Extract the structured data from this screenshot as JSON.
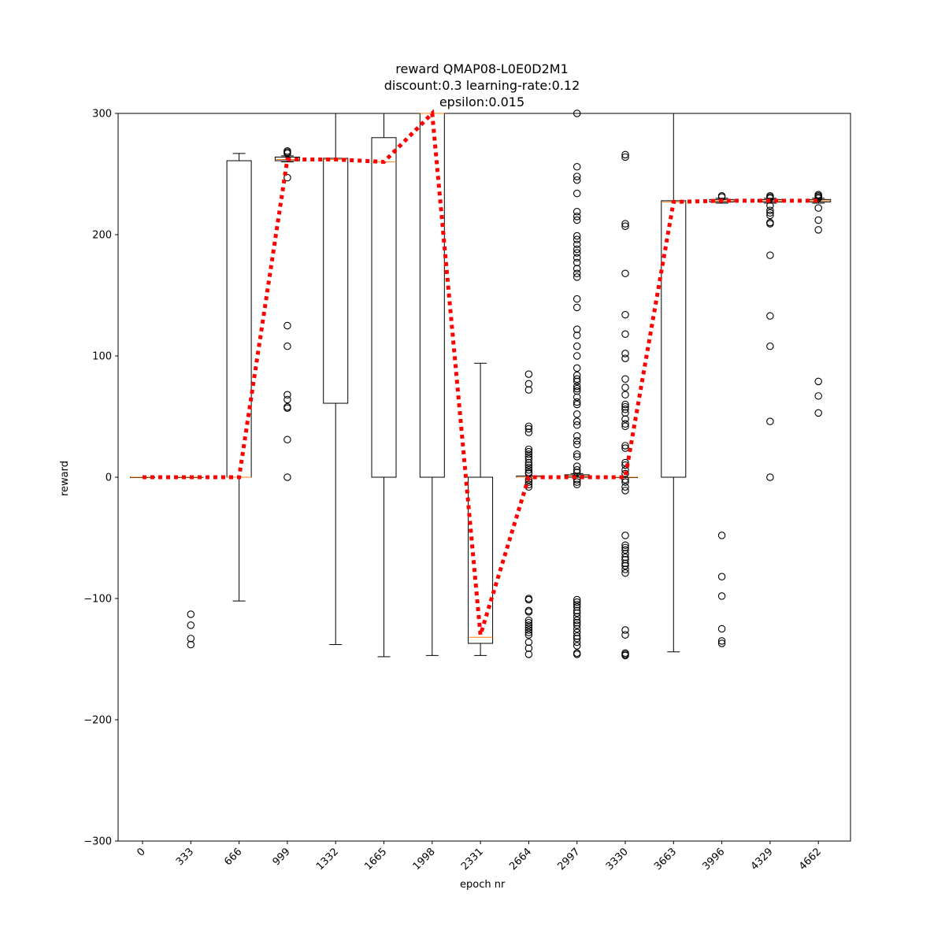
{
  "chart_data": {
    "type": "box",
    "title_lines": [
      "reward QMAP08-L0E0D2M1",
      "discount:0.3 learning-rate:0.12",
      "epsilon:0.015"
    ],
    "xlabel": "epoch nr",
    "ylabel": "reward",
    "ylim": [
      -300,
      300
    ],
    "yticks": [
      -300,
      -200,
      -100,
      0,
      100,
      200,
      300
    ],
    "categories": [
      "0",
      "333",
      "666",
      "999",
      "1332",
      "1665",
      "1998",
      "2331",
      "2664",
      "2997",
      "3330",
      "3663",
      "3996",
      "4329",
      "4662"
    ],
    "boxes": [
      {
        "wlo": 0,
        "q1": 0,
        "med": 0,
        "q3": 0,
        "whi": 0,
        "fliers": []
      },
      {
        "wlo": 0,
        "q1": 0,
        "med": 0,
        "q3": 0,
        "whi": 0,
        "fliers": [
          -113,
          -122,
          -133,
          -138
        ]
      },
      {
        "wlo": -102,
        "q1": 0,
        "med": 0,
        "q3": 261,
        "whi": 267,
        "fliers": []
      },
      {
        "wlo": 260,
        "q1": 261,
        "med": 262,
        "q3": 264,
        "whi": 265,
        "fliers": [
          269,
          268,
          267,
          247,
          125,
          108,
          68,
          64,
          58,
          57,
          31,
          0
        ]
      },
      {
        "wlo": -138,
        "q1": 61,
        "med": 262,
        "q3": 263,
        "whi": 300,
        "fliers": []
      },
      {
        "wlo": -148,
        "q1": 0,
        "med": 260,
        "q3": 280,
        "whi": 300,
        "fliers": []
      },
      {
        "wlo": -147,
        "q1": 0,
        "med": 300,
        "q3": 300,
        "whi": 300,
        "fliers": []
      },
      {
        "wlo": -147,
        "q1": -137,
        "med": -132,
        "q3": 0,
        "whi": 94,
        "fliers": []
      },
      {
        "wlo": 0,
        "q1": 0,
        "med": 0,
        "q3": 1,
        "whi": 1,
        "fliers": [
          85,
          77,
          72,
          42,
          40,
          37,
          23,
          21,
          19,
          17,
          15,
          12,
          10,
          8,
          6,
          4,
          3,
          -2,
          -4,
          -6,
          -8,
          -100,
          -101,
          -110,
          -111,
          -118,
          -120,
          -122,
          -124,
          -126,
          -128,
          -130,
          -136,
          -141,
          -146
        ]
      },
      {
        "wlo": 0,
        "q1": 0,
        "med": 1,
        "q3": 2,
        "whi": 3,
        "fliers": [
          300,
          256,
          248,
          245,
          234,
          219,
          215,
          212,
          199,
          196,
          192,
          188,
          185,
          181,
          177,
          172,
          168,
          165,
          147,
          140,
          122,
          117,
          108,
          100,
          90,
          84,
          81,
          79,
          75,
          73,
          71,
          66,
          62,
          60,
          52,
          46,
          43,
          34,
          30,
          27,
          19,
          17,
          9,
          6,
          4,
          -2,
          -4,
          -6,
          -101,
          -103,
          -105,
          -107,
          -110,
          -112,
          -115,
          -118,
          -120,
          -122,
          -125,
          -128,
          -131,
          -133,
          -136,
          -139,
          -145,
          -146
        ]
      },
      {
        "wlo": 0,
        "q1": 0,
        "med": 0,
        "q3": 0,
        "whi": 0,
        "fliers": [
          266,
          264,
          209,
          207,
          168,
          134,
          118,
          102,
          98,
          81,
          74,
          68,
          60,
          58,
          56,
          53,
          48,
          44,
          42,
          26,
          24,
          12,
          10,
          6,
          3,
          -2,
          -4,
          -8,
          -11,
          -48,
          -56,
          -58,
          -60,
          -63,
          -66,
          -68,
          -71,
          -73,
          -76,
          -79,
          -126,
          -130,
          -145,
          -146,
          -147
        ]
      },
      {
        "wlo": -144,
        "q1": 0,
        "med": 227,
        "q3": 228,
        "whi": 300,
        "fliers": []
      },
      {
        "wlo": 226,
        "q1": 227,
        "med": 228,
        "q3": 229,
        "whi": 230,
        "fliers": [
          232,
          231,
          -48,
          -82,
          -98,
          -125,
          -135,
          -137
        ]
      },
      {
        "wlo": 226,
        "q1": 227,
        "med": 228,
        "q3": 229,
        "whi": 230,
        "fliers": [
          232,
          231,
          230,
          224,
          220,
          218,
          216,
          210,
          209,
          183,
          133,
          108,
          46,
          0
        ]
      },
      {
        "wlo": 226,
        "q1": 227,
        "med": 228,
        "q3": 229,
        "whi": 230,
        "fliers": [
          233,
          232,
          231,
          230,
          222,
          212,
          204,
          79,
          67,
          53
        ]
      }
    ],
    "mean_line": {
      "color": "#ff0000",
      "values": [
        0,
        0,
        0,
        262,
        262,
        260,
        300,
        -130,
        0,
        0,
        0,
        227,
        228,
        228,
        228
      ]
    },
    "colors": {
      "box": "#000000",
      "median": "#ff7f0e",
      "mean_line": "#ff0000"
    }
  }
}
